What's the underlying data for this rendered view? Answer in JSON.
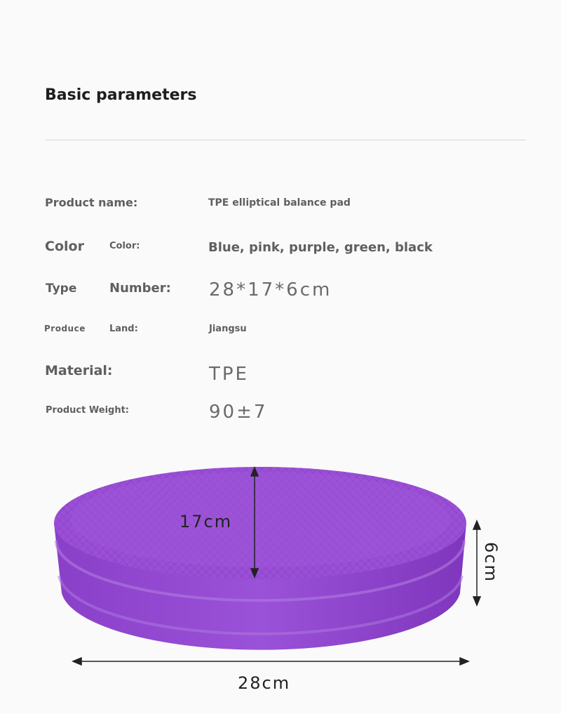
{
  "header": {
    "title": "Basic parameters"
  },
  "params": {
    "product_name_label": "Product name:",
    "product_name_value": "TPE elliptical balance pad",
    "color_label_a": "Color",
    "color_label_b": "Color:",
    "color_value": "Blue, pink, purple, green, black",
    "type_label_a": "Type",
    "type_label_b": "Number:",
    "type_value": "28*17*6cm",
    "produce_label_a": "Produce",
    "produce_label_b": "Land:",
    "produce_value": "Jiangsu",
    "material_label": "Material:",
    "material_value": "TPE",
    "weight_label": "Product Weight:",
    "weight_value": "90±7"
  },
  "product_image": {
    "color": "#9a4fd6",
    "width_label": "17cm",
    "height_label": "6cm",
    "length_label": "28cm"
  }
}
